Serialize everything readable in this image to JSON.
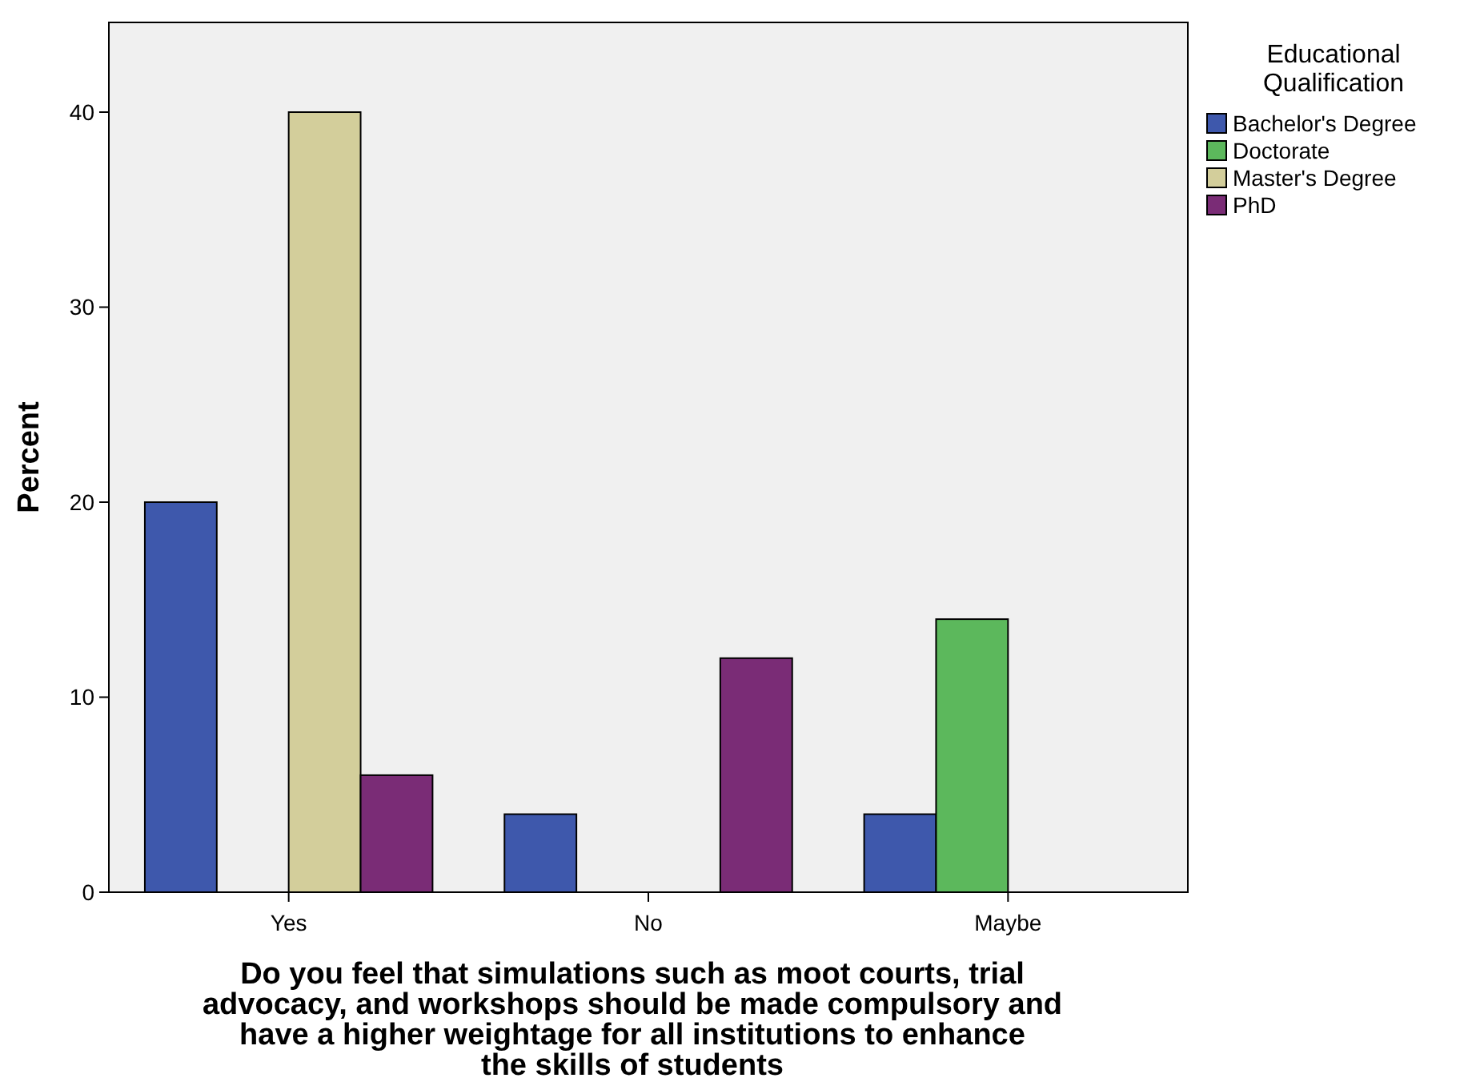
{
  "chart_data": {
    "type": "bar",
    "xlabel": "Do you feel that simulations such as moot courts, trial advocacy, and workshops should be made compulsory and have a higher weightage for all institutions to enhance the skills of students",
    "ylabel": "Percent",
    "legend_title": "Educational Qualification",
    "categories": [
      "Yes",
      "No",
      "Maybe"
    ],
    "series": [
      {
        "name": "Bachelor's Degree",
        "color": "#3e58ac",
        "values": [
          20,
          4,
          4
        ]
      },
      {
        "name": "Doctorate",
        "color": "#5cb85c",
        "values": [
          0,
          0,
          14
        ]
      },
      {
        "name": "Master's Degree",
        "color": "#d3ce9b",
        "values": [
          40,
          0,
          0
        ]
      },
      {
        "name": "PhD",
        "color": "#7a2c76",
        "values": [
          6,
          12,
          0
        ]
      }
    ],
    "ylim": [
      0,
      44.6
    ],
    "yticks": [
      0,
      10,
      20,
      30,
      40
    ],
    "grid": false,
    "legend": "top right"
  }
}
